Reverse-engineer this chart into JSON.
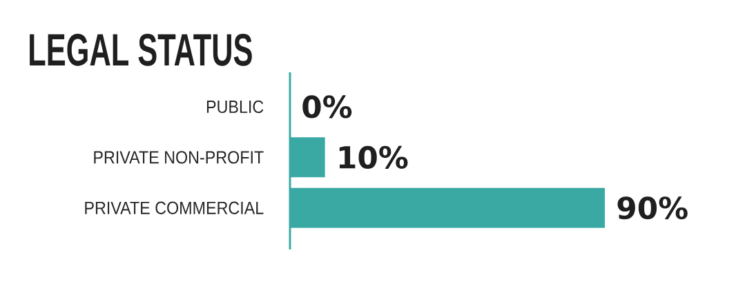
{
  "chart_data": {
    "type": "bar",
    "orientation": "horizontal",
    "title": "LEGAL STATUS",
    "categories": [
      "PUBLIC",
      "PRIVATE NON-PROFIT",
      "PRIVATE COMMERCIAL"
    ],
    "values": [
      0,
      10,
      90
    ],
    "value_labels": [
      "0%",
      "10%",
      "90%"
    ],
    "color": "#3aa9a3"
  }
}
